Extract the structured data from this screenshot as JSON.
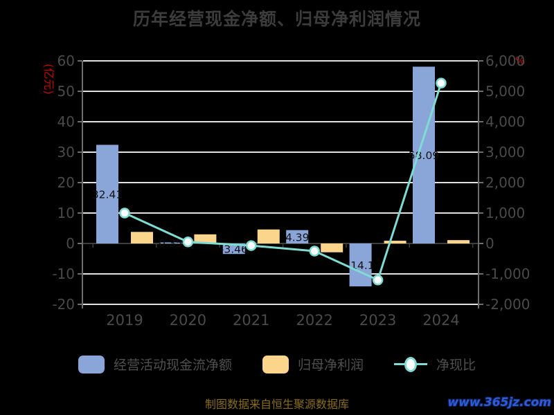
{
  "title": "历年经营现金净额、归母净利润情况",
  "colors": {
    "background": "#000000",
    "title_text": "#3c3c3c",
    "axis_text": "#4a4a4a",
    "axis_unit_red": "#cc0000",
    "grid_line": "#e2e2e2",
    "zero_line": "#3f3f3f",
    "axis_line": "#6e6e6e",
    "bar_label": "#111111",
    "ocf_bar_blue": "#8aa5d8",
    "profit_bar_orange": "#fbd58b",
    "ratio_line_teal": "#7edcd3",
    "footer_gold": "#8a6d1b",
    "watermark_blue": "#2e5bd7"
  },
  "left_axis": {
    "unit": "(亿元)",
    "ticks": [
      "60",
      "50",
      "40",
      "30",
      "20",
      "10",
      "0",
      "-10",
      "-20"
    ]
  },
  "right_axis": {
    "unit": "%",
    "ticks": [
      "6,000",
      "5,000",
      "4,000",
      "3,000",
      "2,000",
      "1,000",
      "0",
      "-1,000",
      "-2,000"
    ]
  },
  "chart_data": {
    "type": "bar",
    "categories": [
      "2019",
      "2020",
      "2021",
      "2022",
      "2023",
      "2024"
    ],
    "series": [
      {
        "key": "operating-cash-flow",
        "name": "经营活动现金流净额",
        "type": "bar",
        "axis": "left",
        "color": "#8aa5d8",
        "values": [
          32.41,
          0.35,
          -3.46,
          4.39,
          -14.1,
          58.09
        ],
        "labels": [
          "32.41",
          "0.35",
          "-3.46",
          "4.39",
          "-14.1",
          "58.09"
        ],
        "label_color": "#111111"
      },
      {
        "key": "net-profit",
        "name": "归母净利润",
        "type": "bar",
        "axis": "left",
        "color": "#fbd58b",
        "values": [
          3.8,
          3.0,
          4.6,
          -2.9,
          0.9,
          1.1
        ]
      },
      {
        "key": "cash-ratio",
        "name": "净现比",
        "type": "line",
        "axis": "right",
        "color": "#7edcd3",
        "marker_fill": "#ffffff",
        "values": [
          1000,
          50,
          -70,
          -250,
          -1200,
          5270
        ]
      }
    ],
    "left_ylim": [
      -20,
      60
    ],
    "right_ylim": [
      -2000,
      6000
    ],
    "left_unit": "亿元",
    "right_unit": "%",
    "grid": true,
    "legend_position": "bottom"
  },
  "legend": {
    "items": [
      {
        "label": "经营活动现金流净额"
      },
      {
        "label": "归母净利润"
      },
      {
        "label": "净现比"
      }
    ]
  },
  "footer": {
    "source_note": "制图数据来自恒生聚源数据库",
    "watermark": "www.365jz.com"
  }
}
